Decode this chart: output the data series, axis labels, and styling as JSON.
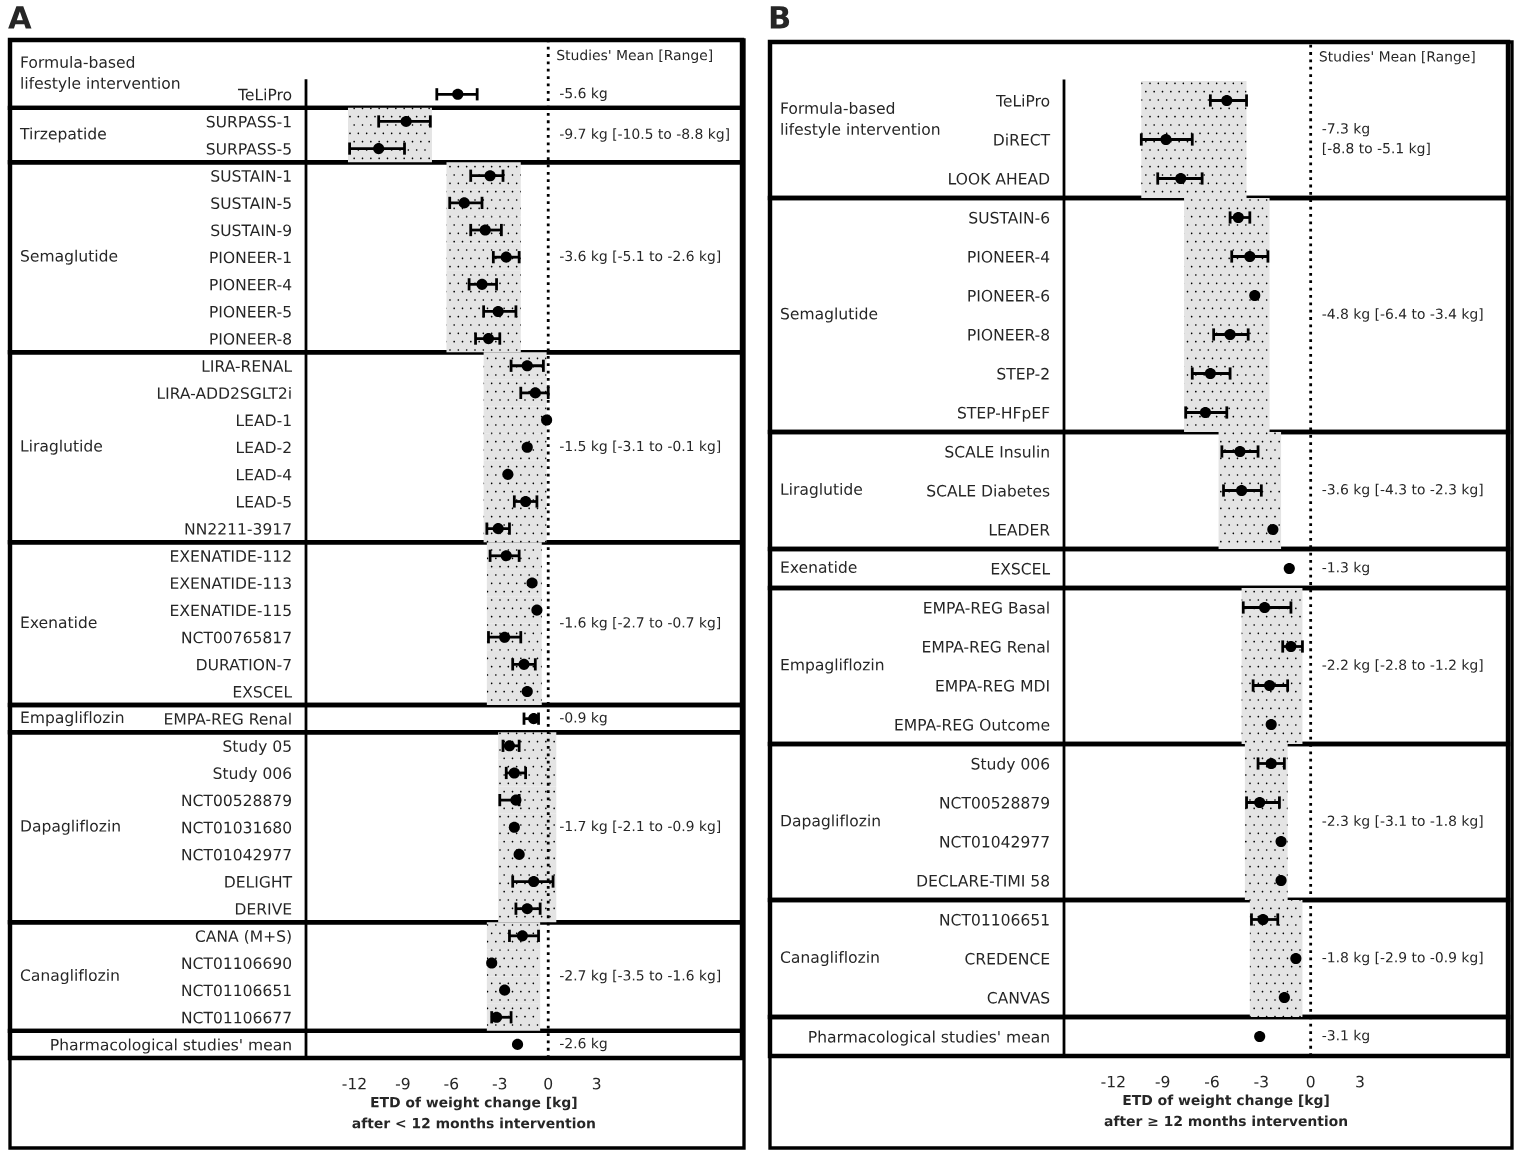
{
  "chart_data": [
    {
      "type": "bar",
      "title": "A",
      "xlabel": "ETD of weight change [kg]\nafter < 12 months intervention",
      "orientation": "horizontal",
      "marker": "circle",
      "categories": [
        "TeLiPro",
        "SURPASS-1",
        "SURPASS-5",
        "SUSTAIN-1",
        "SUSTAIN-5",
        "SUSTAIN-9",
        "PIONEER-1",
        "PIONEER-4",
        "PIONEER-5",
        "PIONEER-8",
        "LIRA-RENAL",
        "LIRA-ADD2SGLT2i",
        "LEAD-1",
        "LEAD-2",
        "LEAD-4",
        "LEAD-5",
        "NN2211-3917",
        "EXENATIDE-112",
        "EXENATIDE-113",
        "EXENATIDE-115",
        "NCT00765817",
        "DURATION-7",
        "EXSCEL",
        "EMPA-REG Renal",
        "Study 05",
        "Study 006",
        "NCT00528879",
        "NCT01031680",
        "NCT01042977",
        "DELIGHT",
        "DERIVE",
        "CANA (M+S)",
        "NCT01106690",
        "NCT01106651",
        "NCT01106677",
        "Pharmacological studies' mean"
      ],
      "series": [
        {
          "color": "#e4e4e4",
          "base": [
            null,
            -12.4,
            -12.4,
            -6.3,
            -6.3,
            -6.3,
            -6.3,
            -6.3,
            -6.3,
            -6.3,
            -4.0,
            -4.0,
            -4.0,
            -4.0,
            -4.0,
            -4.0,
            -4.0,
            -3.8,
            -3.8,
            -3.8,
            -3.8,
            -3.8,
            -3.8,
            null,
            -3.1,
            -3.1,
            -3.1,
            -3.1,
            -3.1,
            -3.1,
            -3.1,
            -3.8,
            -3.8,
            -3.8,
            -3.8,
            null
          ],
          "values": [
            null,
            5.2,
            5.2,
            4.6,
            4.6,
            4.6,
            4.6,
            4.6,
            4.6,
            4.6,
            3.9,
            3.9,
            3.9,
            3.9,
            3.9,
            3.9,
            3.9,
            3.4,
            3.4,
            3.4,
            3.4,
            3.4,
            3.4,
            null,
            3.6,
            3.6,
            3.6,
            3.6,
            3.6,
            3.6,
            3.6,
            3.3,
            3.3,
            3.3,
            3.3,
            null
          ]
        },
        {
          "type": "scatter",
          "color": "#000000",
          "values": [
            -5.6,
            -8.8,
            -10.5,
            -3.6,
            -5.2,
            -3.9,
            -2.6,
            -4.1,
            -3.1,
            -3.7,
            -1.3,
            -0.8,
            -0.1,
            -1.3,
            -2.5,
            -1.4,
            -3.1,
            -2.6,
            -1.0,
            -0.7,
            -2.7,
            -1.5,
            -1.3,
            -0.9,
            -2.4,
            -2.1,
            -2.0,
            -2.1,
            -1.8,
            -0.9,
            -1.3,
            -1.6,
            -3.5,
            -2.7,
            -3.2,
            -1.9
          ],
          "errors": [
            [
              -6.9,
              -4.4
            ],
            [
              -10.5,
              -7.3
            ],
            [
              -12.3,
              -8.9
            ],
            [
              -4.8,
              -2.8
            ],
            [
              -6.1,
              -4.1
            ],
            [
              -4.8,
              -2.9
            ],
            [
              -3.4,
              -1.8
            ],
            [
              -4.9,
              -3.2
            ],
            [
              -4.0,
              -2.0
            ],
            [
              -4.5,
              -3.0
            ],
            [
              -2.3,
              -0.3
            ],
            [
              -1.7,
              0.0
            ],
            null,
            null,
            null,
            [
              -2.1,
              -0.7
            ],
            [
              -3.8,
              -2.4
            ],
            [
              -3.6,
              -1.8
            ],
            null,
            null,
            [
              -3.7,
              -1.7
            ],
            [
              -2.2,
              -0.8
            ],
            null,
            [
              -1.5,
              -0.6
            ],
            [
              -2.8,
              -1.8
            ],
            [
              -2.6,
              -1.4
            ],
            [
              -3.0,
              -1.8
            ],
            null,
            null,
            [
              -2.2,
              0.3
            ],
            [
              -2.0,
              -0.5
            ],
            [
              -2.4,
              -0.6
            ],
            null,
            null,
            [
              -3.5,
              -2.3
            ],
            null
          ]
        }
      ],
      "xlim": [
        -15,
        12
      ],
      "xticks": [
        -12,
        -9,
        -6,
        -3,
        0,
        3
      ],
      "ref_lines": [
        {
          "axis": "x",
          "value": 0,
          "line_style": "dotted",
          "color": "#000000"
        }
      ],
      "annotations": [
        "Studies' Mean [Range]",
        "Formula-based\nlifestyle intervention",
        "Tirzepatide",
        "Semaglutide",
        "Liraglutide",
        "Exenatide",
        "Empagliflozin",
        "Dapagliflozin",
        "Canagliflozin",
        "-5.6 kg",
        "-9.7 kg [-10.5 to -8.8 kg]",
        "-3.6 kg [-5.1 to -2.6 kg]",
        "-1.5 kg [-3.1 to -0.1 kg]",
        "-1.6 kg [-2.7 to -0.7 kg]",
        "-0.9 kg",
        "-1.7 kg [-2.1 to -0.9 kg]",
        "-2.7 kg [-3.5 to -1.6 kg]",
        "-2.6 kg"
      ]
    },
    {
      "type": "bar",
      "title": "B",
      "xlabel": "ETD of weight change [kg]\nafter ≥ 12 months intervention",
      "orientation": "horizontal",
      "marker": "circle",
      "categories": [
        "TeLiPro",
        "DiRECT",
        "LOOK AHEAD",
        "SUSTAIN-6",
        "PIONEER-4",
        "PIONEER-6",
        "PIONEER-8",
        "STEP-2",
        "STEP-HFpEF",
        "SCALE Insulin",
        "SCALE Diabetes",
        "LEADER",
        "EXSCEL",
        "EMPA-REG Basal",
        "EMPA-REG Renal",
        "EMPA-REG MDI",
        "EMPA-REG Outcome",
        "Study 006",
        "NCT00528879",
        "NCT01042977",
        "DECLARE-TIMI 58",
        "NCT01106651",
        "CREDENCE",
        "CANVAS",
        "Pharmacological studies' mean"
      ],
      "series": [
        {
          "color": "#e4e4e4",
          "base": [
            -10.3,
            -10.3,
            -10.3,
            -7.7,
            -7.7,
            -7.7,
            -7.7,
            -7.7,
            -7.7,
            -5.6,
            -5.6,
            -5.6,
            null,
            -4.2,
            -4.2,
            -4.2,
            -4.2,
            -4.0,
            -4.0,
            -4.0,
            -4.0,
            -3.7,
            -3.7,
            -3.7,
            null
          ],
          "values": [
            6.4,
            6.4,
            6.4,
            5.2,
            5.2,
            5.2,
            5.2,
            5.2,
            5.2,
            3.8,
            3.8,
            3.8,
            null,
            3.7,
            3.7,
            3.7,
            3.7,
            2.6,
            2.6,
            2.6,
            2.6,
            3.2,
            3.2,
            3.2,
            null
          ]
        },
        {
          "type": "scatter",
          "color": "#000000",
          "values": [
            -5.1,
            -8.8,
            -7.9,
            -4.4,
            -3.7,
            -3.4,
            -4.9,
            -6.1,
            -6.4,
            -4.3,
            -4.2,
            -2.3,
            -1.3,
            -2.8,
            -1.2,
            -2.5,
            -2.4,
            -2.4,
            -3.1,
            -1.8,
            -1.8,
            -2.9,
            -0.9,
            -1.6,
            -3.1
          ],
          "errors": [
            [
              -6.1,
              -3.9
            ],
            [
              -10.3,
              -7.2
            ],
            [
              -9.3,
              -6.6
            ],
            [
              -4.9,
              -3.7
            ],
            [
              -4.8,
              -2.6
            ],
            null,
            [
              -5.9,
              -3.8
            ],
            [
              -7.2,
              -4.9
            ],
            [
              -7.6,
              -5.1
            ],
            [
              -5.4,
              -3.2
            ],
            [
              -5.3,
              -3.0
            ],
            null,
            null,
            [
              -4.1,
              -1.2
            ],
            [
              -1.7,
              -0.5
            ],
            [
              -3.5,
              -1.4
            ],
            null,
            [
              -3.2,
              -1.6
            ],
            [
              -3.9,
              -1.9
            ],
            null,
            null,
            [
              -3.6,
              -2.0
            ],
            null,
            null,
            null
          ]
        }
      ],
      "xlim": [
        -15,
        12
      ],
      "xticks": [
        -12,
        -9,
        -6,
        -3,
        0,
        3
      ],
      "ref_lines": [
        {
          "axis": "x",
          "value": 0,
          "line_style": "dotted",
          "color": "#000000"
        }
      ],
      "annotations": [
        "Studies' Mean [Range]",
        "Formula-based\nlifestyle intervention",
        "Semaglutide",
        "Liraglutide",
        "Exenatide",
        "Empagliflozin",
        "Dapagliflozin",
        "Canagliflozin",
        "-7.3 kg\n[-8.8 to -5.1 kg]",
        "-4.8 kg [-6.4 to -3.4 kg]",
        "-3.6 kg [-4.3 to -2.3 kg]",
        "-1.3 kg",
        "-2.2 kg [-2.8 to -1.2 kg]",
        "-2.3 kg [-3.1 to -1.8 kg]",
        "-1.8 kg [-2.9 to -0.9 kg]",
        "-3.1 kg"
      ]
    }
  ]
}
